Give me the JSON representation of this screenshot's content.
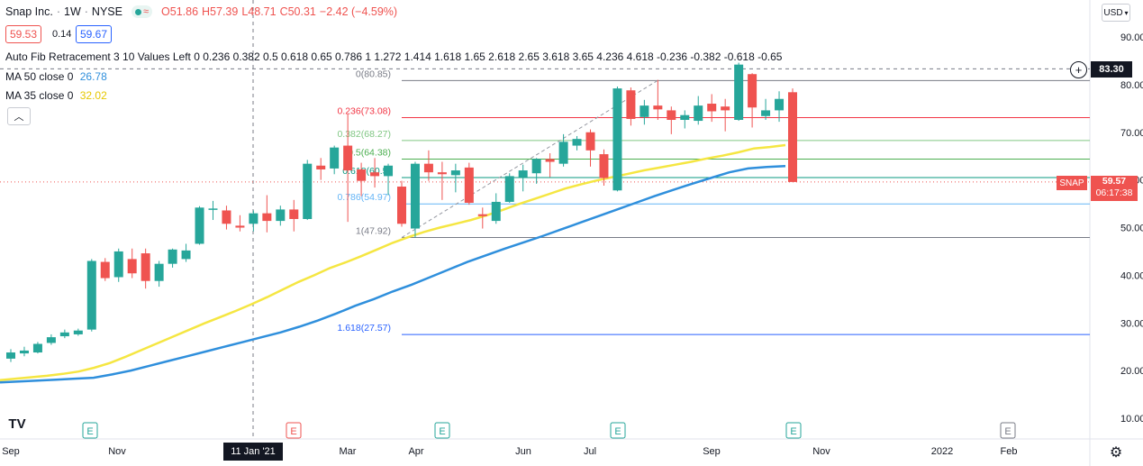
{
  "header": {
    "symbol": "Snap Inc.",
    "interval": "1W",
    "exchange": "NYSE",
    "open": "O51.86",
    "high": "H57.39",
    "low": "L48.71",
    "close": "C50.31",
    "change": "−2.42 (−4.59%)",
    "bid": "59.53",
    "spread": "0.14",
    "ask": "59.67"
  },
  "indicators": {
    "fib": "Auto Fib Retracement 3 10 Values Left 0 0.236 0.382 0.5 0.618 0.65 0.786 1 1.272 1.414 1.618 1.65 2.618 2.65 3.618 3.65 4.236 4.618 -0.236 -0.382 -0.618 -0.65",
    "ma50_label": "MA 50 close 0",
    "ma50_value": "26.78",
    "ma35_label": "MA 35 close 0",
    "ma35_value": "32.02"
  },
  "currency": "USD",
  "crosshair_price": "83.30",
  "crosshair_date": "11 Jan '21",
  "last_price": {
    "ticker": "SNAP",
    "price": "59.57",
    "countdown": "06:17:38"
  },
  "colors": {
    "up": "#26a69a",
    "down": "#ef5350",
    "ma50": "#2f8fdc",
    "ma35": "#f5e642",
    "accent": "#2962ff"
  },
  "chart_data": {
    "type": "candlestick",
    "title": "Snap Inc. · 1W · NYSE",
    "ylim": [
      5,
      97
    ],
    "y_ticks": [
      "90.00",
      "80.00",
      "70.00",
      "60.00",
      "50.00",
      "40.00",
      "30.00",
      "20.00",
      "10.00"
    ],
    "x_ticks": [
      "Sep",
      "Nov",
      "Mar",
      "Apr",
      "Jun",
      "Jul",
      "Sep",
      "Nov",
      "2022",
      "Feb"
    ],
    "candles": [
      {
        "o": 22.5,
        "h": 24.5,
        "l": 21.8,
        "c": 23.8
      },
      {
        "o": 23.6,
        "h": 25.0,
        "l": 23.0,
        "c": 24.2
      },
      {
        "o": 23.8,
        "h": 26.0,
        "l": 23.6,
        "c": 25.6
      },
      {
        "o": 25.8,
        "h": 27.6,
        "l": 25.4,
        "c": 27.0
      },
      {
        "o": 27.2,
        "h": 28.6,
        "l": 26.8,
        "c": 28.0
      },
      {
        "o": 27.6,
        "h": 28.8,
        "l": 27.3,
        "c": 28.4
      },
      {
        "o": 28.6,
        "h": 43.4,
        "l": 28.2,
        "c": 43.0
      },
      {
        "o": 42.8,
        "h": 43.6,
        "l": 38.8,
        "c": 39.4
      },
      {
        "o": 39.6,
        "h": 45.6,
        "l": 38.6,
        "c": 45.0
      },
      {
        "o": 43.4,
        "h": 45.6,
        "l": 39.4,
        "c": 40.4
      },
      {
        "o": 44.6,
        "h": 45.6,
        "l": 37.2,
        "c": 38.8
      },
      {
        "o": 38.8,
        "h": 43.0,
        "l": 37.6,
        "c": 42.4
      },
      {
        "o": 42.4,
        "h": 45.6,
        "l": 41.6,
        "c": 45.4
      },
      {
        "o": 43.4,
        "h": 46.6,
        "l": 42.8,
        "c": 45.2
      },
      {
        "o": 46.6,
        "h": 54.5,
        "l": 46.4,
        "c": 54.2
      },
      {
        "o": 54.0,
        "h": 55.6,
        "l": 51.6,
        "c": 54.0
      },
      {
        "o": 53.6,
        "h": 54.6,
        "l": 49.6,
        "c": 50.8
      },
      {
        "o": 50.4,
        "h": 52.6,
        "l": 49.2,
        "c": 50.0
      },
      {
        "o": 50.8,
        "h": 53.6,
        "l": 49.2,
        "c": 53.0
      },
      {
        "o": 53.0,
        "h": 56.8,
        "l": 49.0,
        "c": 51.4
      },
      {
        "o": 51.4,
        "h": 54.6,
        "l": 50.4,
        "c": 53.8
      },
      {
        "o": 53.8,
        "h": 55.8,
        "l": 49.2,
        "c": 51.8
      },
      {
        "o": 51.8,
        "h": 64.2,
        "l": 51.6,
        "c": 63.4
      },
      {
        "o": 63.0,
        "h": 64.6,
        "l": 60.0,
        "c": 62.2
      },
      {
        "o": 62.4,
        "h": 67.2,
        "l": 61.2,
        "c": 66.8
      },
      {
        "o": 67.2,
        "h": 73.8,
        "l": 51.2,
        "c": 62.0
      },
      {
        "o": 62.2,
        "h": 63.6,
        "l": 56.6,
        "c": 59.8
      },
      {
        "o": 61.6,
        "h": 64.6,
        "l": 58.4,
        "c": 60.8
      },
      {
        "o": 60.8,
        "h": 63.4,
        "l": 56.8,
        "c": 63.0
      },
      {
        "o": 58.6,
        "h": 59.8,
        "l": 50.2,
        "c": 50.8
      },
      {
        "o": 49.8,
        "h": 63.8,
        "l": 47.9,
        "c": 63.4
      },
      {
        "o": 63.4,
        "h": 66.2,
        "l": 59.8,
        "c": 61.6
      },
      {
        "o": 61.6,
        "h": 63.8,
        "l": 55.8,
        "c": 61.2
      },
      {
        "o": 61.0,
        "h": 63.4,
        "l": 57.4,
        "c": 62.0
      },
      {
        "o": 62.6,
        "h": 63.6,
        "l": 54.8,
        "c": 55.2
      },
      {
        "o": 52.8,
        "h": 54.2,
        "l": 49.8,
        "c": 52.4
      },
      {
        "o": 51.4,
        "h": 57.2,
        "l": 50.8,
        "c": 55.4
      },
      {
        "o": 55.4,
        "h": 61.4,
        "l": 55.2,
        "c": 60.8
      },
      {
        "o": 60.6,
        "h": 63.2,
        "l": 57.6,
        "c": 62.0
      },
      {
        "o": 61.4,
        "h": 64.6,
        "l": 59.2,
        "c": 64.4
      },
      {
        "o": 64.4,
        "h": 65.6,
        "l": 60.6,
        "c": 63.8
      },
      {
        "o": 63.4,
        "h": 69.6,
        "l": 62.8,
        "c": 68.0
      },
      {
        "o": 67.2,
        "h": 69.2,
        "l": 66.2,
        "c": 68.6
      },
      {
        "o": 70.0,
        "h": 70.6,
        "l": 62.8,
        "c": 66.2
      },
      {
        "o": 65.4,
        "h": 66.4,
        "l": 58.8,
        "c": 60.4
      },
      {
        "o": 57.8,
        "h": 79.6,
        "l": 57.6,
        "c": 79.2
      },
      {
        "o": 78.8,
        "h": 79.4,
        "l": 71.4,
        "c": 72.8
      },
      {
        "o": 73.2,
        "h": 76.8,
        "l": 71.6,
        "c": 75.6
      },
      {
        "o": 75.6,
        "h": 81.0,
        "l": 72.6,
        "c": 74.8
      },
      {
        "o": 74.6,
        "h": 75.4,
        "l": 69.6,
        "c": 72.6
      },
      {
        "o": 72.6,
        "h": 74.6,
        "l": 70.8,
        "c": 73.6
      },
      {
        "o": 72.4,
        "h": 77.6,
        "l": 71.6,
        "c": 75.6
      },
      {
        "o": 76.0,
        "h": 78.0,
        "l": 72.2,
        "c": 74.4
      },
      {
        "o": 75.4,
        "h": 77.0,
        "l": 70.2,
        "c": 74.6
      },
      {
        "o": 72.6,
        "h": 84.6,
        "l": 72.4,
        "c": 84.2
      },
      {
        "o": 82.2,
        "h": 82.4,
        "l": 71.0,
        "c": 75.2
      },
      {
        "o": 73.4,
        "h": 77.0,
        "l": 72.6,
        "c": 74.6
      },
      {
        "o": 74.6,
        "h": 78.6,
        "l": 72.2,
        "c": 77.0
      },
      {
        "o": 78.4,
        "h": 79.2,
        "l": 60.0,
        "c": 59.57
      }
    ],
    "ma35": [
      18.0,
      18.3,
      18.6,
      18.9,
      19.3,
      19.8,
      20.6,
      21.6,
      22.9,
      24.3,
      25.7,
      27.1,
      28.5,
      29.9,
      31.2,
      32.5,
      33.9,
      35.4,
      37.0,
      38.6,
      40.0,
      41.5,
      42.7,
      44.0,
      45.4,
      46.8,
      48.0,
      49.1,
      50.0,
      50.8,
      51.6,
      52.6,
      53.7,
      54.9,
      56.0,
      57.1,
      58.2,
      59.1,
      59.9,
      60.6,
      61.3,
      62.0,
      62.6,
      63.2,
      63.8,
      64.5,
      65.1,
      65.8,
      66.6,
      66.9,
      67.3
    ],
    "ma50": [
      17.5,
      17.7,
      17.9,
      18.1,
      18.3,
      18.5,
      19.2,
      20.0,
      21.0,
      22.0,
      23.0,
      24.0,
      25.0,
      26.0,
      27.0,
      28.0,
      29.2,
      30.5,
      32.0,
      33.6,
      35.0,
      36.6,
      38.0,
      39.6,
      41.2,
      42.8,
      44.2,
      45.6,
      46.9,
      48.2,
      49.6,
      51.0,
      52.4,
      53.8,
      55.2,
      56.6,
      57.9,
      59.2,
      60.4,
      61.6,
      62.4,
      62.7,
      62.9
    ],
    "fib_levels": [
      {
        "label": "0(80.85)",
        "value": 80.85,
        "color": "#787b86"
      },
      {
        "label": "0.236(73.08)",
        "value": 73.08,
        "color": "#f23645"
      },
      {
        "label": "0.382(68.27)",
        "value": 68.27,
        "color": "#81c784"
      },
      {
        "label": "0.5(64.38)",
        "value": 64.38,
        "color": "#4caf50"
      },
      {
        "label": "0.618(60.5)",
        "value": 60.5,
        "color": "#089981"
      },
      {
        "label": "0.786(54.97)",
        "value": 54.97,
        "color": "#64b5f6"
      },
      {
        "label": "1(47.92)",
        "value": 47.92,
        "color": "#787b86"
      },
      {
        "label": "1.618(27.57)",
        "value": 27.57,
        "color": "#2962ff"
      }
    ],
    "earnings_markers": [
      {
        "label": "E",
        "color": "#26a69a"
      },
      {
        "label": "E",
        "color": "#ef5350"
      },
      {
        "label": "E",
        "color": "#26a69a"
      },
      {
        "label": "E",
        "color": "#26a69a"
      },
      {
        "label": "E",
        "color": "#26a69a"
      },
      {
        "label": "E",
        "color": "#787b86"
      }
    ]
  }
}
